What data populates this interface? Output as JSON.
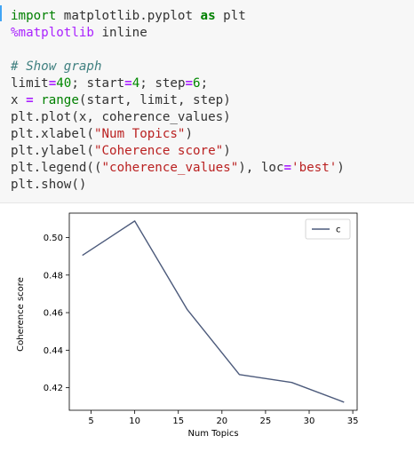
{
  "code_cell": {
    "lines": [
      [
        {
          "t": "import",
          "c": "kw-import"
        },
        {
          "t": " matplotlib.pyplot ",
          "c": ""
        },
        {
          "t": "as",
          "c": "kw-as"
        },
        {
          "t": " plt",
          "c": ""
        }
      ],
      [
        {
          "t": "%matplotlib",
          "c": "magic"
        },
        {
          "t": " inline",
          "c": ""
        }
      ],
      [
        {
          "t": "",
          "c": ""
        }
      ],
      [
        {
          "t": "# Show graph",
          "c": "comment"
        }
      ],
      [
        {
          "t": "limit",
          "c": ""
        },
        {
          "t": "=",
          "c": "op"
        },
        {
          "t": "40",
          "c": "num"
        },
        {
          "t": "; start",
          "c": ""
        },
        {
          "t": "=",
          "c": "op"
        },
        {
          "t": "4",
          "c": "num"
        },
        {
          "t": "; step",
          "c": ""
        },
        {
          "t": "=",
          "c": "op"
        },
        {
          "t": "6",
          "c": "num"
        },
        {
          "t": ";",
          "c": ""
        }
      ],
      [
        {
          "t": "x ",
          "c": ""
        },
        {
          "t": "=",
          "c": "op"
        },
        {
          "t": " ",
          "c": ""
        },
        {
          "t": "range",
          "c": "builtin"
        },
        {
          "t": "(start, limit, step)",
          "c": ""
        }
      ],
      [
        {
          "t": "plt.plot(x, coherence_values)",
          "c": ""
        }
      ],
      [
        {
          "t": "plt.xlabel(",
          "c": ""
        },
        {
          "t": "\"Num Topics\"",
          "c": "str"
        },
        {
          "t": ")",
          "c": ""
        }
      ],
      [
        {
          "t": "plt.ylabel(",
          "c": ""
        },
        {
          "t": "\"Coherence score\"",
          "c": "str"
        },
        {
          "t": ")",
          "c": ""
        }
      ],
      [
        {
          "t": "plt.legend((",
          "c": ""
        },
        {
          "t": "\"coherence_values\"",
          "c": "str"
        },
        {
          "t": "), loc",
          "c": ""
        },
        {
          "t": "=",
          "c": "op"
        },
        {
          "t": "'best'",
          "c": "str"
        },
        {
          "t": ")",
          "c": ""
        }
      ],
      [
        {
          "t": "plt.show()",
          "c": ""
        }
      ]
    ]
  },
  "chart_data": {
    "type": "line",
    "x": [
      4,
      10,
      16,
      22,
      28,
      34
    ],
    "series": [
      {
        "name": "c",
        "values": [
          0.4905,
          0.5088,
          0.4618,
          0.427,
          0.4228,
          0.4123
        ],
        "color": "#4c5a7b"
      }
    ],
    "title": "",
    "xlabel": "Num Topics",
    "ylabel": "Coherence score",
    "xticks": [
      5,
      10,
      15,
      20,
      25,
      30,
      35
    ],
    "xtick_labels": [
      "5",
      "10",
      "15",
      "20",
      "25",
      "30",
      "35"
    ],
    "yticks": [
      0.42,
      0.44,
      0.46,
      0.48,
      0.5
    ],
    "ytick_labels": [
      "0.42",
      "0.44",
      "0.46",
      "0.48",
      "0.50"
    ],
    "xlim": [
      2.5,
      35.5
    ],
    "ylim": [
      0.408,
      0.513
    ],
    "grid": false,
    "legend": "top-right",
    "legend_entries": [
      "c"
    ]
  }
}
